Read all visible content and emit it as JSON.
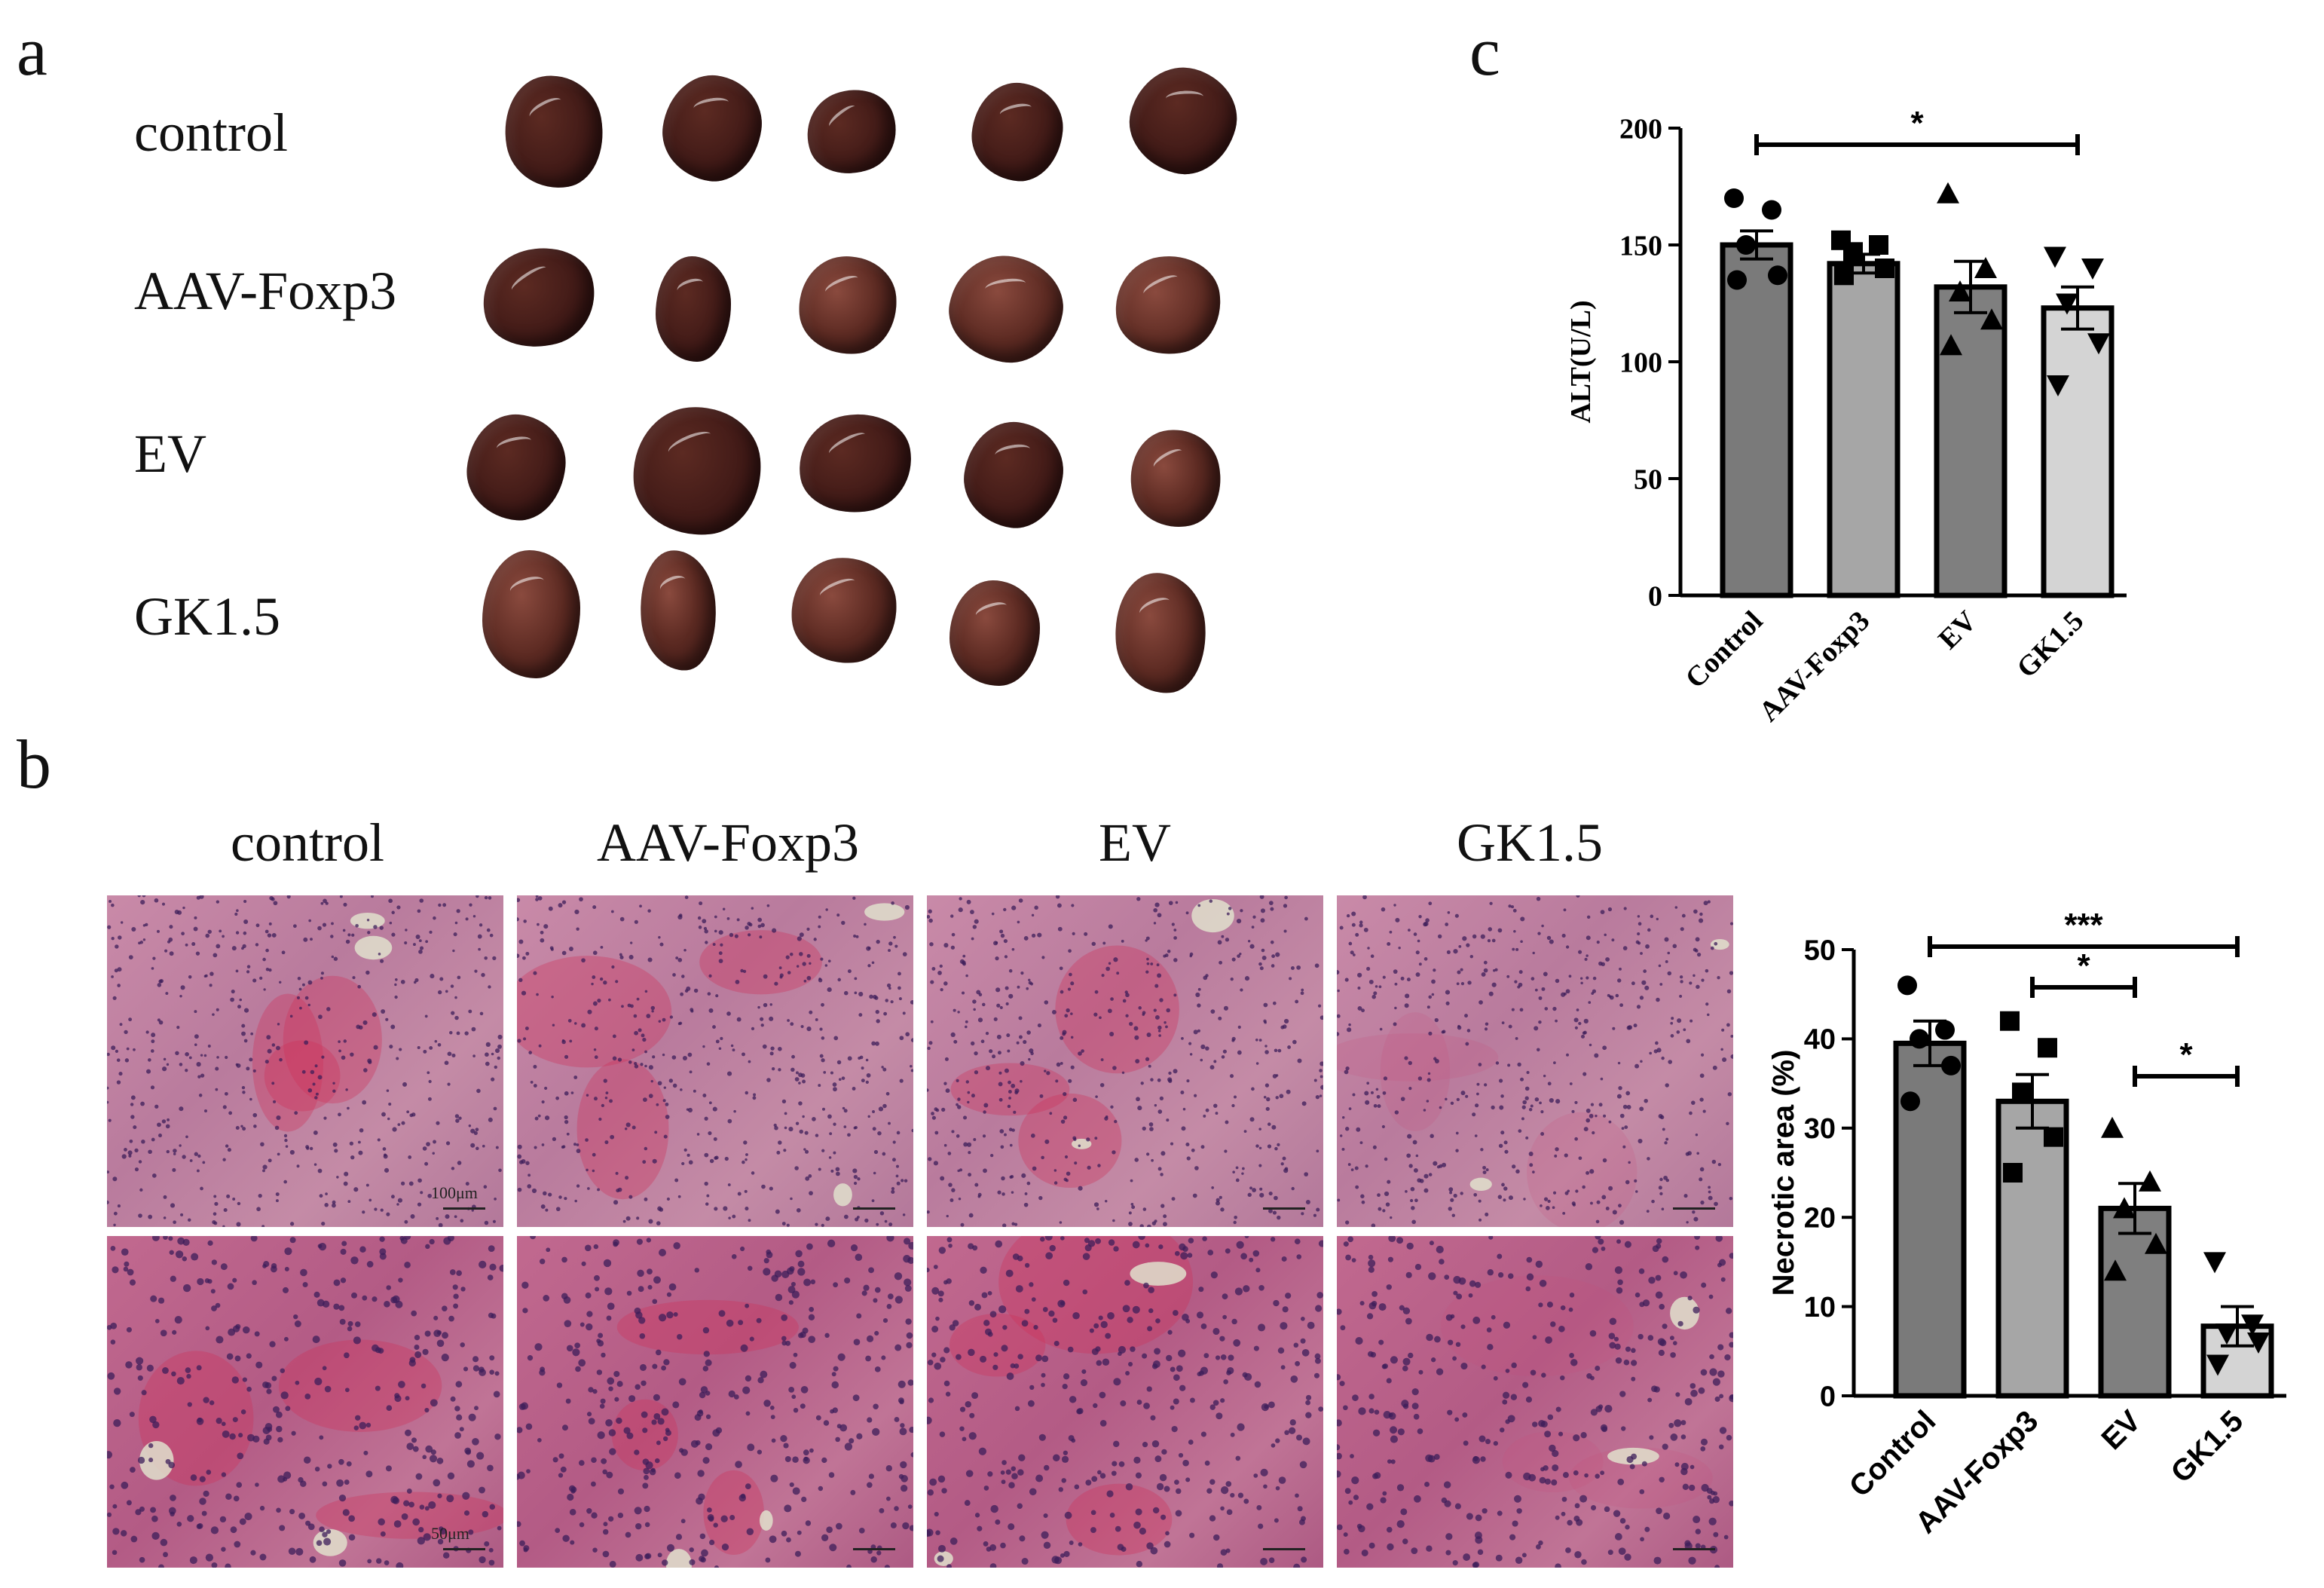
{
  "panels": {
    "a": {
      "letter": "a",
      "rows": [
        "control",
        "AAV-Foxp3",
        "EV",
        "GK1.5"
      ],
      "organ_color": "#3a1614",
      "organ_color_light": "#5c2a22"
    },
    "b": {
      "letter": "b",
      "columns": [
        "control",
        "AAV-Foxp3",
        "EV",
        "GK1.5"
      ],
      "scale_low": "100μm",
      "scale_high": "50μm"
    },
    "c": {
      "letter": "c"
    }
  },
  "chart_data": [
    {
      "type": "bar",
      "panel": "c",
      "categories": [
        "Control",
        "AAV-Foxp3",
        "EV",
        "GK1.5"
      ],
      "values": [
        150,
        142,
        132,
        123
      ],
      "errors": [
        6,
        4,
        11,
        9
      ],
      "points": [
        [
          170,
          165,
          150,
          137,
          135
        ],
        [
          152,
          150,
          147,
          140,
          137
        ],
        [
          172,
          140,
          130,
          118,
          107
        ],
        [
          145,
          140,
          125,
          108,
          90
        ]
      ],
      "markers": [
        "circle",
        "square",
        "triangle-up",
        "triangle-down"
      ],
      "bar_colors": [
        "#7a7a7a",
        "#a6a6a6",
        "#7f7f7f",
        "#d4d4d4"
      ],
      "ylabel": "ALT(U/L)",
      "ylim": [
        0,
        200
      ],
      "yticks": [
        0,
        50,
        100,
        150,
        200
      ],
      "significance": [
        {
          "from": 0,
          "to": 3,
          "label": "*"
        }
      ]
    },
    {
      "type": "bar",
      "panel": "b",
      "categories": [
        "Control",
        "AAV-Foxp3",
        "EV",
        "GK1.5"
      ],
      "values": [
        39.5,
        33,
        21,
        7.8
      ],
      "errors": [
        2.5,
        3,
        2.8,
        2.2
      ],
      "points": [
        [
          46,
          41,
          40,
          37,
          33
        ],
        [
          42,
          39,
          34,
          29,
          25
        ],
        [
          30,
          24,
          21,
          17,
          14
        ],
        [
          15,
          8,
          7,
          6,
          3.5
        ]
      ],
      "markers": [
        "circle",
        "square",
        "triangle-up",
        "triangle-down"
      ],
      "bar_colors": [
        "#7a7a7a",
        "#a6a6a6",
        "#7f7f7f",
        "#d4d4d4"
      ],
      "ylabel": "Necrotic area (%)",
      "ylim": [
        0,
        50
      ],
      "yticks": [
        0,
        10,
        20,
        30,
        40,
        50
      ],
      "significance": [
        {
          "from": 0,
          "to": 3,
          "label": "***"
        },
        {
          "from": 1,
          "to": 2,
          "label": "*"
        },
        {
          "from": 2,
          "to": 3,
          "label": "*"
        }
      ]
    }
  ]
}
